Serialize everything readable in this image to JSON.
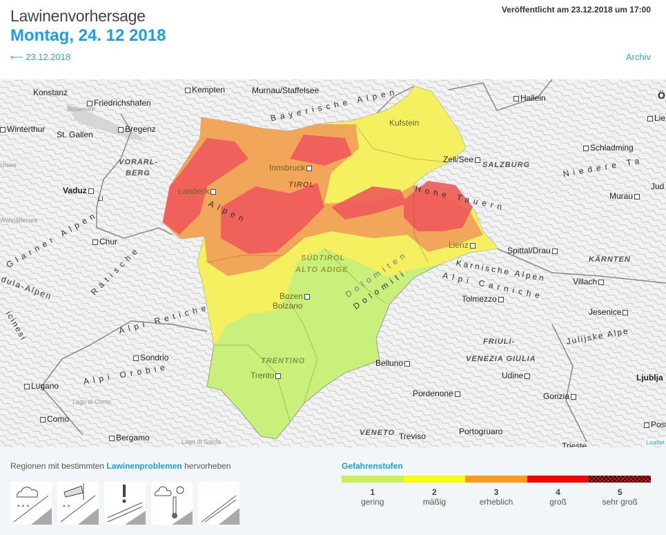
{
  "header": {
    "title": "Lawinenvorhersage",
    "date": "Montag, 24. 12 2018",
    "prev_link": "⟵ 23.12.2018",
    "archive_link": "Archiv",
    "published": "Veröffentlicht am 23.12.2018 um 17:00"
  },
  "map": {
    "cities": [
      "Konstanz",
      "Friedrichshafen",
      "Kempten",
      "Murnau/Staffelsee",
      "Hallein",
      "Winterthur",
      "St. Gallen",
      "Bregenz",
      "Kufstein",
      "Innsbruck",
      "Landeck",
      "Zell/See",
      "Schladming",
      "Vaduz",
      "LI",
      "Chur",
      "Lienz",
      "Spittal/Drau",
      "Murau",
      "Villach",
      "Bozen",
      "Bolzano",
      "Trento",
      "Tolmezzo",
      "Jesenice",
      "Sondrio",
      "Belluno",
      "Udine",
      "Lugano",
      "Pordenone",
      "Gorizia",
      "Como",
      "Bergamo",
      "Treviso",
      "Portogruaro",
      "Ljublja",
      "Post",
      "Trieste",
      "Jud",
      "Lie",
      "Ö"
    ],
    "regions": [
      "VORARL-",
      "BERG",
      "TIROL",
      "SALZBURG",
      "KÄRNTEN",
      "SÜDTIROL",
      "ALTO ADIGE",
      "TRENTINO",
      "FRIULI-",
      "VENEZIA GIULIA",
      "VENETO"
    ],
    "ranges": [
      "Bayerische Alpen",
      "Hohe Tauern",
      "Niedere Ta",
      "Alpen",
      "Rätische",
      "Glarner Alpen",
      "dula-Alpen",
      "Karnische Alpen",
      "Alpi Carniche",
      "Dolomiten",
      "Dolomiti",
      "Alpi Retiche",
      "Alpi Orobie",
      "Julijske Alpe",
      "icinesi"
    ],
    "lakes": [
      "Bodensee",
      "chsee",
      "Walstättersee",
      "Lago di Como",
      "Lago di Garda"
    ],
    "attribution": "Leaflet"
  },
  "footer": {
    "highlight_prefix": "Regionen mit bestimmten ",
    "highlight_link": "Lawinenproblemen",
    "highlight_suffix": " hervorheben",
    "problems": [
      "new-snow-icon",
      "wind-slab-icon",
      "persistent-weak-layer-icon",
      "wet-snow-icon",
      "gliding-snow-icon"
    ],
    "legend_title": "Gefahrenstufen",
    "levels": [
      {
        "num": "1",
        "name": "gering",
        "color": "#c8f05a"
      },
      {
        "num": "2",
        "name": "mäßig",
        "color": "#ffff00"
      },
      {
        "num": "3",
        "name": "erheblich",
        "color": "#ff9a1a"
      },
      {
        "num": "4",
        "name": "groß",
        "color": "#ff0000"
      },
      {
        "num": "5",
        "name": "sehr groß",
        "color": "#ff0000"
      }
    ]
  }
}
